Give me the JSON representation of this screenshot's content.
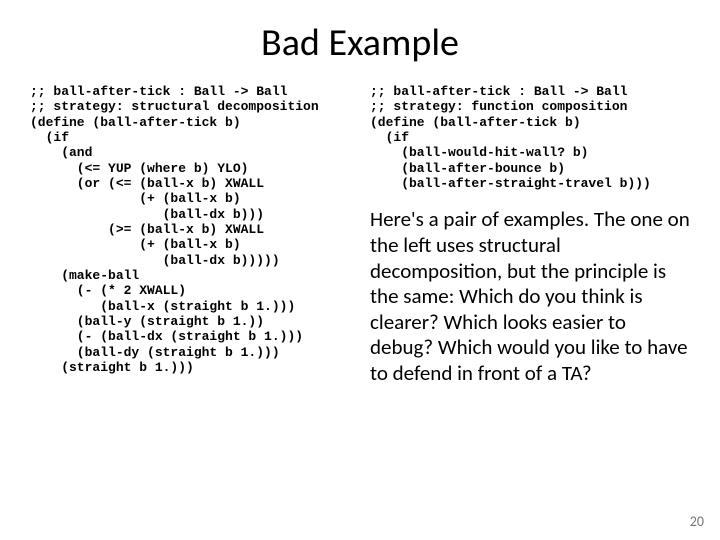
{
  "title": "Bad Example",
  "left_code": ";; ball-after-tick : Ball -> Ball\n;; strategy: structural decomposition\n(define (ball-after-tick b)\n  (if\n    (and\n      (<= YUP (where b) YLO)\n      (or (<= (ball-x b) XWALL\n              (+ (ball-x b)\n                 (ball-dx b)))\n          (>= (ball-x b) XWALL\n              (+ (ball-x b)\n                 (ball-dx b)))))\n    (make-ball\n      (- (* 2 XWALL)\n         (ball-x (straight b 1.)))\n      (ball-y (straight b 1.))\n      (- (ball-dx (straight b 1.)))\n      (ball-dy (straight b 1.)))\n    (straight b 1.)))",
  "right_code": ";; ball-after-tick : Ball -> Ball\n;; strategy: function composition\n(define (ball-after-tick b)\n  (if\n    (ball-would-hit-wall? b)\n    (ball-after-bounce b)\n    (ball-after-straight-travel b)))",
  "prose": "Here's a pair of examples.  The one on the left uses structural decomposition, but the principle is the same: Which do you think is clearer?  Which looks easier to debug? Which would you like to have to defend in front of a TA?",
  "slide_number": "20",
  "colors": {
    "background": "#ffffff",
    "text": "#000000",
    "slide_number": "#777777"
  },
  "typography": {
    "title_fontsize": 38,
    "code_fontsize": 13,
    "prose_fontsize": 21,
    "code_font": "Courier New",
    "body_font": "Calibri"
  }
}
